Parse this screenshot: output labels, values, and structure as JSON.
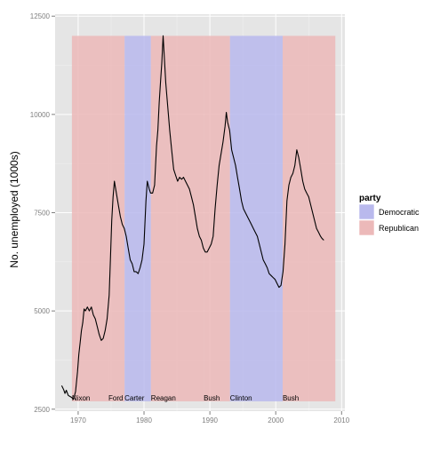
{
  "chart_data": {
    "type": "line",
    "title": "",
    "xlabel": "",
    "ylabel": "No. unemployed (1000s)",
    "xlim": [
      1966.5,
      2010.5
    ],
    "ylim": [
      2450,
      12550
    ],
    "x_ticks": [
      1970,
      1980,
      1990,
      2000,
      2010
    ],
    "y_ticks": [
      2500,
      5000,
      7500,
      10000,
      12500
    ],
    "grid": true,
    "legend": {
      "title": "party",
      "placement": "right",
      "entries": [
        {
          "label": "Democratic",
          "color": "#b9b9ed"
        },
        {
          "label": "Republican",
          "color": "#ecb9b9"
        }
      ]
    },
    "colors": {
      "panel_background": "#e5e5e5",
      "grid_major": "#ffffff",
      "grid_minor": "#f2f2f2",
      "democratic": "#b9b9ed",
      "republican": "#ecb9b9",
      "line": "#000000",
      "axis_text": "#7f7f7f"
    },
    "presidential_terms": [
      {
        "name": "Nixon",
        "party": "Republican",
        "start": 1969.05,
        "end": 1974.6
      },
      {
        "name": "Ford",
        "party": "Republican",
        "start": 1974.6,
        "end": 1977.05
      },
      {
        "name": "Carter",
        "party": "Democratic",
        "start": 1977.05,
        "end": 1981.05
      },
      {
        "name": "Reagan",
        "party": "Republican",
        "start": 1981.05,
        "end": 1989.05
      },
      {
        "name": "Bush",
        "party": "Republican",
        "start": 1989.05,
        "end": 1993.05
      },
      {
        "name": "Clinton",
        "party": "Democratic",
        "start": 1993.05,
        "end": 2001.05
      },
      {
        "name": "Bush",
        "party": "Republican",
        "start": 2001.05,
        "end": 2009.05
      }
    ],
    "band_range": [
      2700,
      12000
    ],
    "series": [
      {
        "x": [
          1967.5,
          1967.8,
          1968.0,
          1968.2,
          1968.5,
          1968.8,
          1969.0,
          1969.3,
          1969.6,
          1969.9,
          1970.1,
          1970.3,
          1970.5,
          1970.7,
          1970.9,
          1971.1,
          1971.4,
          1971.7,
          1972.0,
          1972.3,
          1972.6,
          1972.9,
          1973.2,
          1973.5,
          1973.8,
          1974.1,
          1974.4,
          1974.7,
          1974.9,
          1975.1,
          1975.3,
          1975.5,
          1975.8,
          1976.1,
          1976.4,
          1976.7,
          1977.0,
          1977.3,
          1977.6,
          1977.9,
          1978.2,
          1978.5,
          1978.8,
          1979.1,
          1979.4,
          1979.7,
          1980.0,
          1980.3,
          1980.5,
          1980.8,
          1981.0,
          1981.3,
          1981.6,
          1981.9,
          1982.1,
          1982.3,
          1982.5,
          1982.7,
          1982.9,
          1983.1,
          1983.3,
          1983.6,
          1983.9,
          1984.2,
          1984.5,
          1984.8,
          1985.1,
          1985.4,
          1985.7,
          1986.0,
          1986.3,
          1986.6,
          1986.9,
          1987.2,
          1987.5,
          1987.8,
          1988.1,
          1988.4,
          1988.7,
          1989.0,
          1989.3,
          1989.6,
          1989.9,
          1990.2,
          1990.5,
          1990.8,
          1991.1,
          1991.4,
          1991.7,
          1992.0,
          1992.3,
          1992.5,
          1992.7,
          1993.0,
          1993.3,
          1993.6,
          1993.9,
          1994.2,
          1994.5,
          1994.8,
          1995.1,
          1995.4,
          1995.7,
          1996.0,
          1996.3,
          1996.6,
          1996.9,
          1997.2,
          1997.5,
          1997.8,
          1998.1,
          1998.4,
          1998.7,
          1999.0,
          1999.3,
          1999.6,
          1999.9,
          2000.2,
          2000.5,
          2000.8,
          2001.1,
          2001.4,
          2001.7,
          2002.0,
          2002.3,
          2002.6,
          2002.9,
          2003.2,
          2003.5,
          2003.8,
          2004.1,
          2004.4,
          2004.7,
          2005.0,
          2005.3,
          2005.6,
          2005.9,
          2006.2,
          2006.5,
          2006.8,
          2007.0,
          2007.3
        ],
        "y": [
          3100,
          3000,
          2900,
          2980,
          2850,
          2820,
          2800,
          2750,
          2950,
          3450,
          3900,
          4200,
          4500,
          4700,
          5050,
          5000,
          5100,
          5000,
          5100,
          4900,
          4800,
          4600,
          4400,
          4250,
          4300,
          4500,
          4800,
          5400,
          6300,
          7300,
          7900,
          8300,
          8000,
          7700,
          7400,
          7200,
          7100,
          6900,
          6600,
          6300,
          6200,
          6000,
          6000,
          5950,
          6100,
          6300,
          6700,
          7800,
          8300,
          8100,
          8000,
          8000,
          8200,
          9200,
          9600,
          10300,
          10800,
          11300,
          12000,
          11400,
          10800,
          10200,
          9600,
          9100,
          8600,
          8450,
          8300,
          8400,
          8350,
          8400,
          8300,
          8200,
          8100,
          7900,
          7700,
          7400,
          7100,
          6900,
          6800,
          6600,
          6500,
          6500,
          6600,
          6700,
          6900,
          7600,
          8200,
          8700,
          9000,
          9300,
          9700,
          10050,
          9800,
          9600,
          9100,
          8900,
          8700,
          8400,
          8100,
          7800,
          7600,
          7500,
          7400,
          7300,
          7200,
          7100,
          7000,
          6900,
          6700,
          6500,
          6300,
          6200,
          6100,
          5950,
          5900,
          5850,
          5800,
          5700,
          5600,
          5650,
          6000,
          6700,
          7800,
          8200,
          8400,
          8500,
          8700,
          9100,
          8900,
          8600,
          8300,
          8100,
          8000,
          7900,
          7700,
          7500,
          7300,
          7100,
          7000,
          6900,
          6850,
          6800
        ]
      }
    ]
  }
}
